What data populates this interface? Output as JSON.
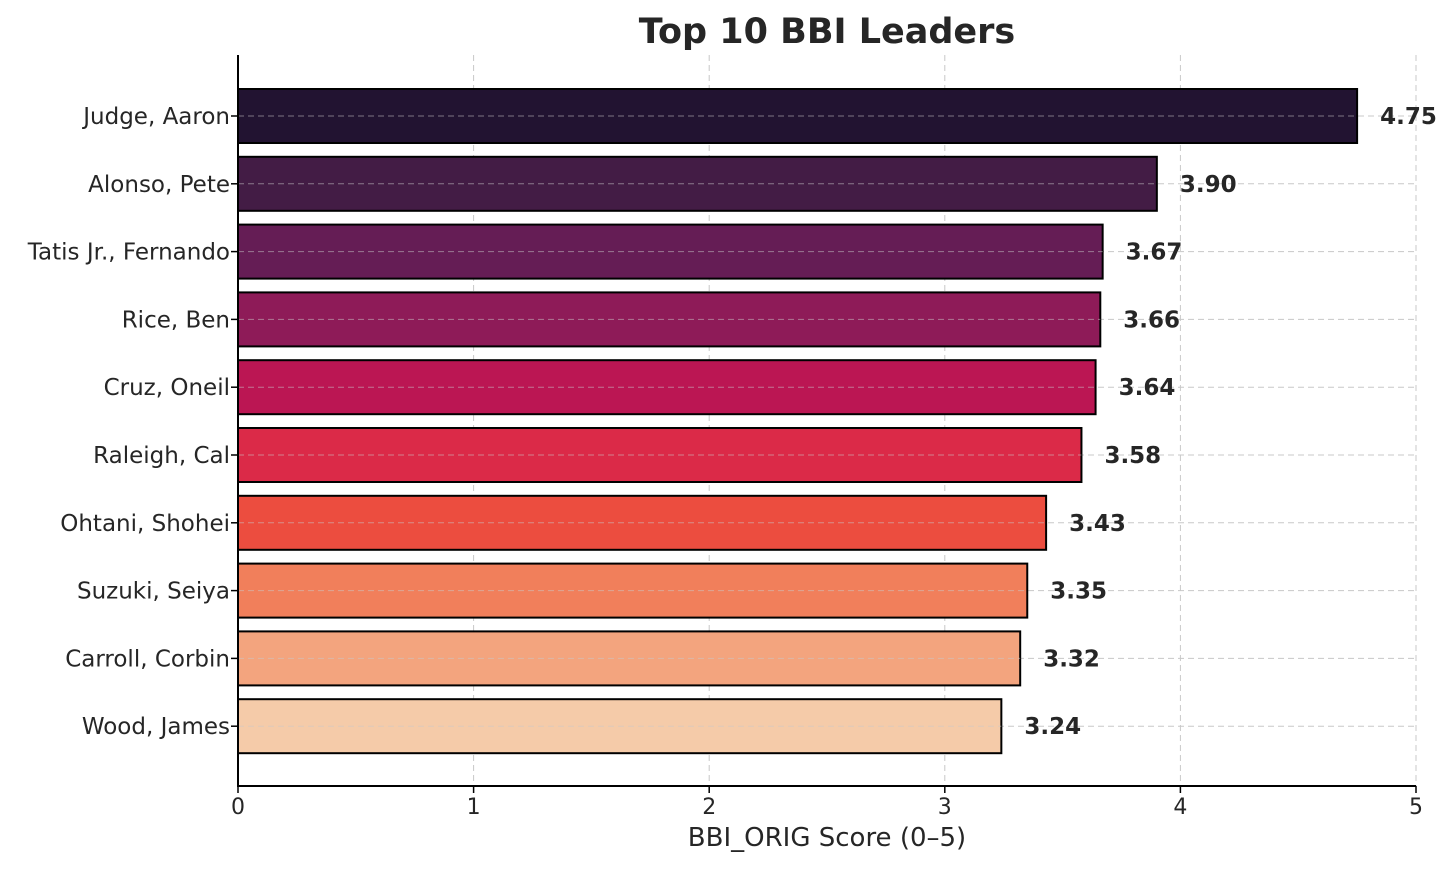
{
  "chart_data": {
    "type": "bar",
    "orientation": "horizontal",
    "title": "Top 10 BBI Leaders",
    "xlabel": "BBI_ORIG Score (0–5)",
    "ylabel": "",
    "xlim": [
      0,
      5
    ],
    "xticks": [
      0,
      1,
      2,
      3,
      4,
      5
    ],
    "grid": true,
    "legend": "none",
    "categories": [
      "Judge, Aaron",
      "Alonso, Pete",
      "Tatis Jr., Fernando",
      "Rice, Ben",
      "Cruz, Oneil",
      "Raleigh, Cal",
      "Ohtani, Shohei",
      "Suzuki, Seiya",
      "Carroll, Corbin",
      "Wood, James"
    ],
    "values": [
      4.75,
      3.9,
      3.67,
      3.66,
      3.64,
      3.58,
      3.43,
      3.35,
      3.32,
      3.24
    ],
    "value_labels": [
      "4.75",
      "3.90",
      "3.67",
      "3.66",
      "3.64",
      "3.58",
      "3.43",
      "3.35",
      "3.32",
      "3.24"
    ],
    "colors": [
      "#221331",
      "#431c45",
      "#651d55",
      "#8e1b58",
      "#bb1653",
      "#db2a48",
      "#ec4d3f",
      "#f17f5b",
      "#f3a47e",
      "#f5cba9"
    ]
  }
}
